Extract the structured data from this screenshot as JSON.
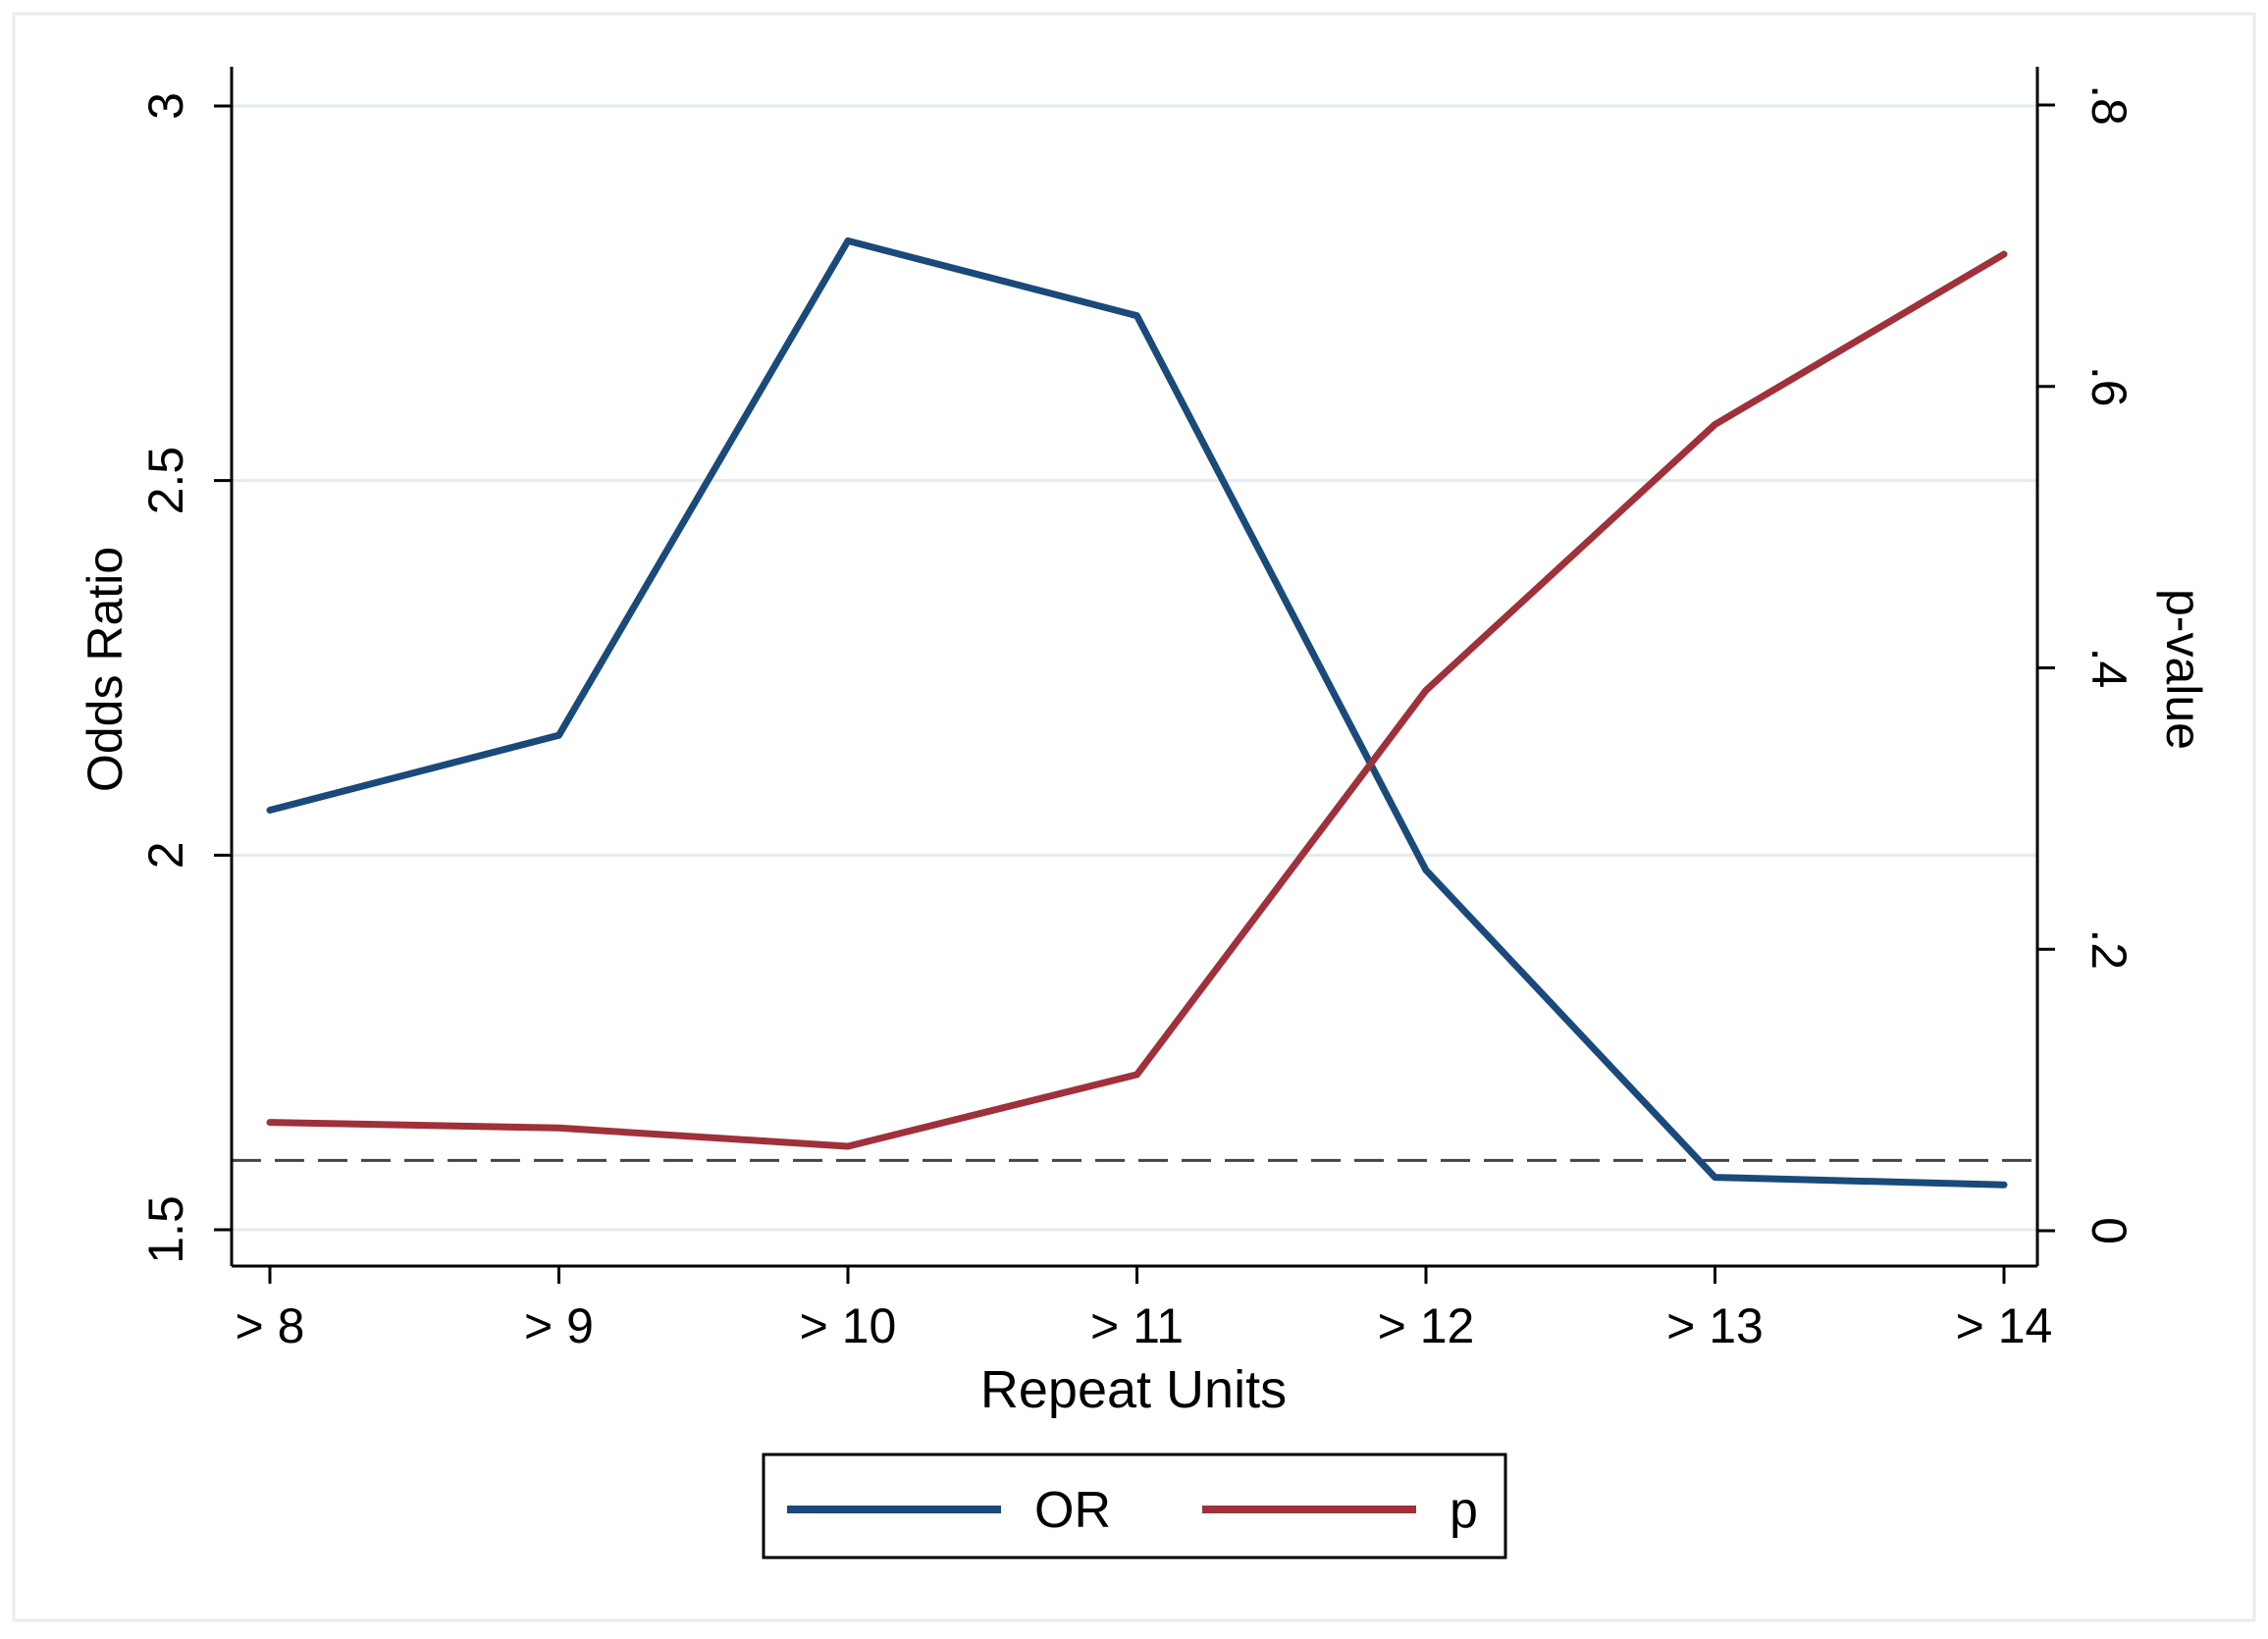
{
  "chart_data": {
    "type": "line",
    "title": "",
    "xlabel": "Repeat Units",
    "ylabel": "Odds Ratio",
    "y2label": "p-value",
    "categories": [
      "> 8",
      "> 9",
      "> 10",
      "> 11",
      "> 12",
      "> 13",
      "> 14"
    ],
    "ylim": [
      1.5,
      3.0
    ],
    "y_ticks": [
      1.5,
      2.0,
      2.5,
      3.0
    ],
    "y_tick_labels": [
      "1.5",
      "2",
      "2.5",
      "3"
    ],
    "y2lim": [
      0,
      0.8
    ],
    "y2_ticks": [
      0,
      0.2,
      0.4,
      0.6,
      0.8
    ],
    "y2_tick_labels": [
      "0",
      ".2",
      ".4",
      ".6",
      ".8"
    ],
    "grid": true,
    "legend_position": "bottom",
    "reference_line": {
      "axis": "y2",
      "value": 0.05,
      "style": "dashed"
    },
    "series": [
      {
        "name": "OR",
        "axis": "y",
        "color": "#1a4a7a",
        "values": [
          2.06,
          2.16,
          2.82,
          2.72,
          1.98,
          1.57,
          1.56
        ]
      },
      {
        "name": "p",
        "axis": "y2",
        "color": "#a0303a",
        "values": [
          0.077,
          0.073,
          0.06,
          0.111,
          0.384,
          0.573,
          0.694
        ]
      }
    ]
  }
}
